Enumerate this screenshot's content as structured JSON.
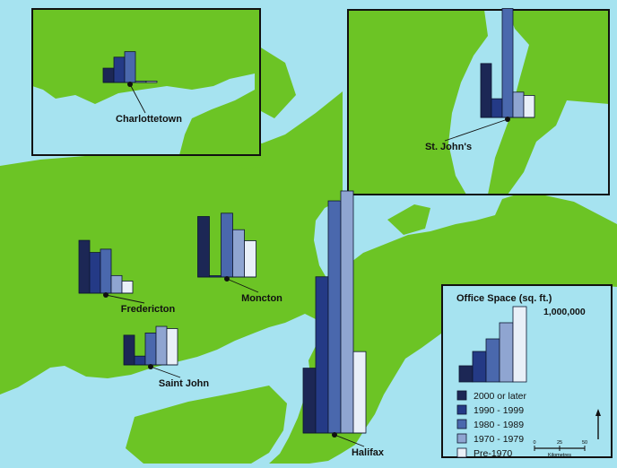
{
  "colors": {
    "water": "#a6e3f0",
    "land": "#6cc425",
    "border": "#111111",
    "series": [
      "#1c2755",
      "#243a86",
      "#4a68ad",
      "#8fa5d1",
      "#e9f0f8"
    ]
  },
  "series_names": [
    "2000 or later",
    "1990 - 1999",
    "1980 - 1989",
    "1970 - 1979",
    "Pre-1970"
  ],
  "legend": {
    "title": "Office Space (sq. ft.)",
    "max_label": "1,000,000"
  },
  "scale_bar": {
    "tick_labels": [
      "0",
      "25",
      "50"
    ],
    "unit": "Kilometres"
  },
  "north_arrow_icon": "north-arrow-icon",
  "chart_data": [
    {
      "type": "bar",
      "city": "Charlottetown",
      "categories": [
        "2000 or later",
        "1990 - 1999",
        "1980 - 1989",
        "1970 - 1979",
        "Pre-1970"
      ],
      "values": [
        130000,
        230000,
        280000,
        10000,
        5000
      ]
    },
    {
      "type": "bar",
      "city": "St. John's",
      "categories": [
        "2000 or later",
        "1990 - 1999",
        "1980 - 1989",
        "1970 - 1979",
        "Pre-1970"
      ],
      "values": [
        490000,
        170000,
        990000,
        230000,
        200000
      ]
    },
    {
      "type": "bar",
      "city": "Fredericton",
      "categories": [
        "2000 or later",
        "1990 - 1999",
        "1980 - 1989",
        "1970 - 1979",
        "Pre-1970"
      ],
      "values": [
        480000,
        370000,
        400000,
        160000,
        110000
      ]
    },
    {
      "type": "bar",
      "city": "Moncton",
      "categories": [
        "2000 or later",
        "1990 - 1999",
        "1980 - 1989",
        "1970 - 1979",
        "Pre-1970"
      ],
      "values": [
        550000,
        5000,
        580000,
        430000,
        330000
      ]
    },
    {
      "type": "bar",
      "city": "Saint John",
      "categories": [
        "2000 or later",
        "1990 - 1999",
        "1980 - 1989",
        "1970 - 1979",
        "Pre-1970"
      ],
      "values": [
        270000,
        80000,
        290000,
        350000,
        330000
      ]
    },
    {
      "type": "bar",
      "city": "Halifax",
      "categories": [
        "2000 or later",
        "1990 - 1999",
        "1980 - 1989",
        "1970 - 1979",
        "Pre-1970"
      ],
      "values": [
        590000,
        1420000,
        2110000,
        2200000,
        740000
      ]
    }
  ]
}
